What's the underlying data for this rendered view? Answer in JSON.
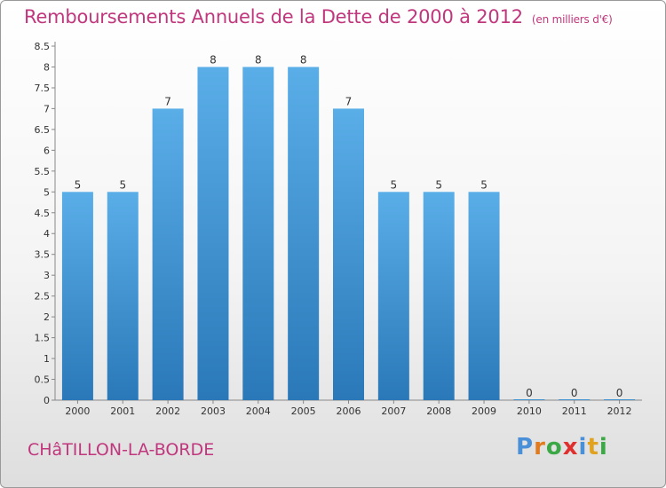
{
  "header": {
    "title": "Remboursements Annuels de la Dette de 2000 à 2012",
    "unit": "(en milliers d'€)"
  },
  "footer": {
    "place": "CHâTILLON-LA-BORDE",
    "logo": [
      {
        "char": "P",
        "color": "#4a90d9"
      },
      {
        "char": "r",
        "color": "#e07b1f"
      },
      {
        "char": "o",
        "color": "#3aa845"
      },
      {
        "char": "x",
        "color": "#e0302e"
      },
      {
        "char": "i",
        "color": "#4a90d9"
      },
      {
        "char": "t",
        "color": "#e0a21f"
      },
      {
        "char": "i",
        "color": "#3aa845"
      }
    ]
  },
  "chart_data": {
    "type": "bar",
    "categories": [
      "2000",
      "2001",
      "2002",
      "2003",
      "2004",
      "2005",
      "2006",
      "2007",
      "2008",
      "2009",
      "2010",
      "2011",
      "2012"
    ],
    "values": [
      5,
      5,
      7,
      8,
      8,
      8,
      7,
      5,
      5,
      5,
      0,
      0,
      0
    ],
    "yticks": [
      "0",
      "0.5",
      "1",
      "1.5",
      "2",
      "2.5",
      "3",
      "3.5",
      "4",
      "4.5",
      "5",
      "5.5",
      "6",
      "6.5",
      "7",
      "7.5",
      "8",
      "8.5"
    ],
    "ylim": [
      0,
      8.5
    ],
    "bar_color_top": "#5aaee8",
    "bar_color_bottom": "#2a78b8",
    "grid": false
  }
}
